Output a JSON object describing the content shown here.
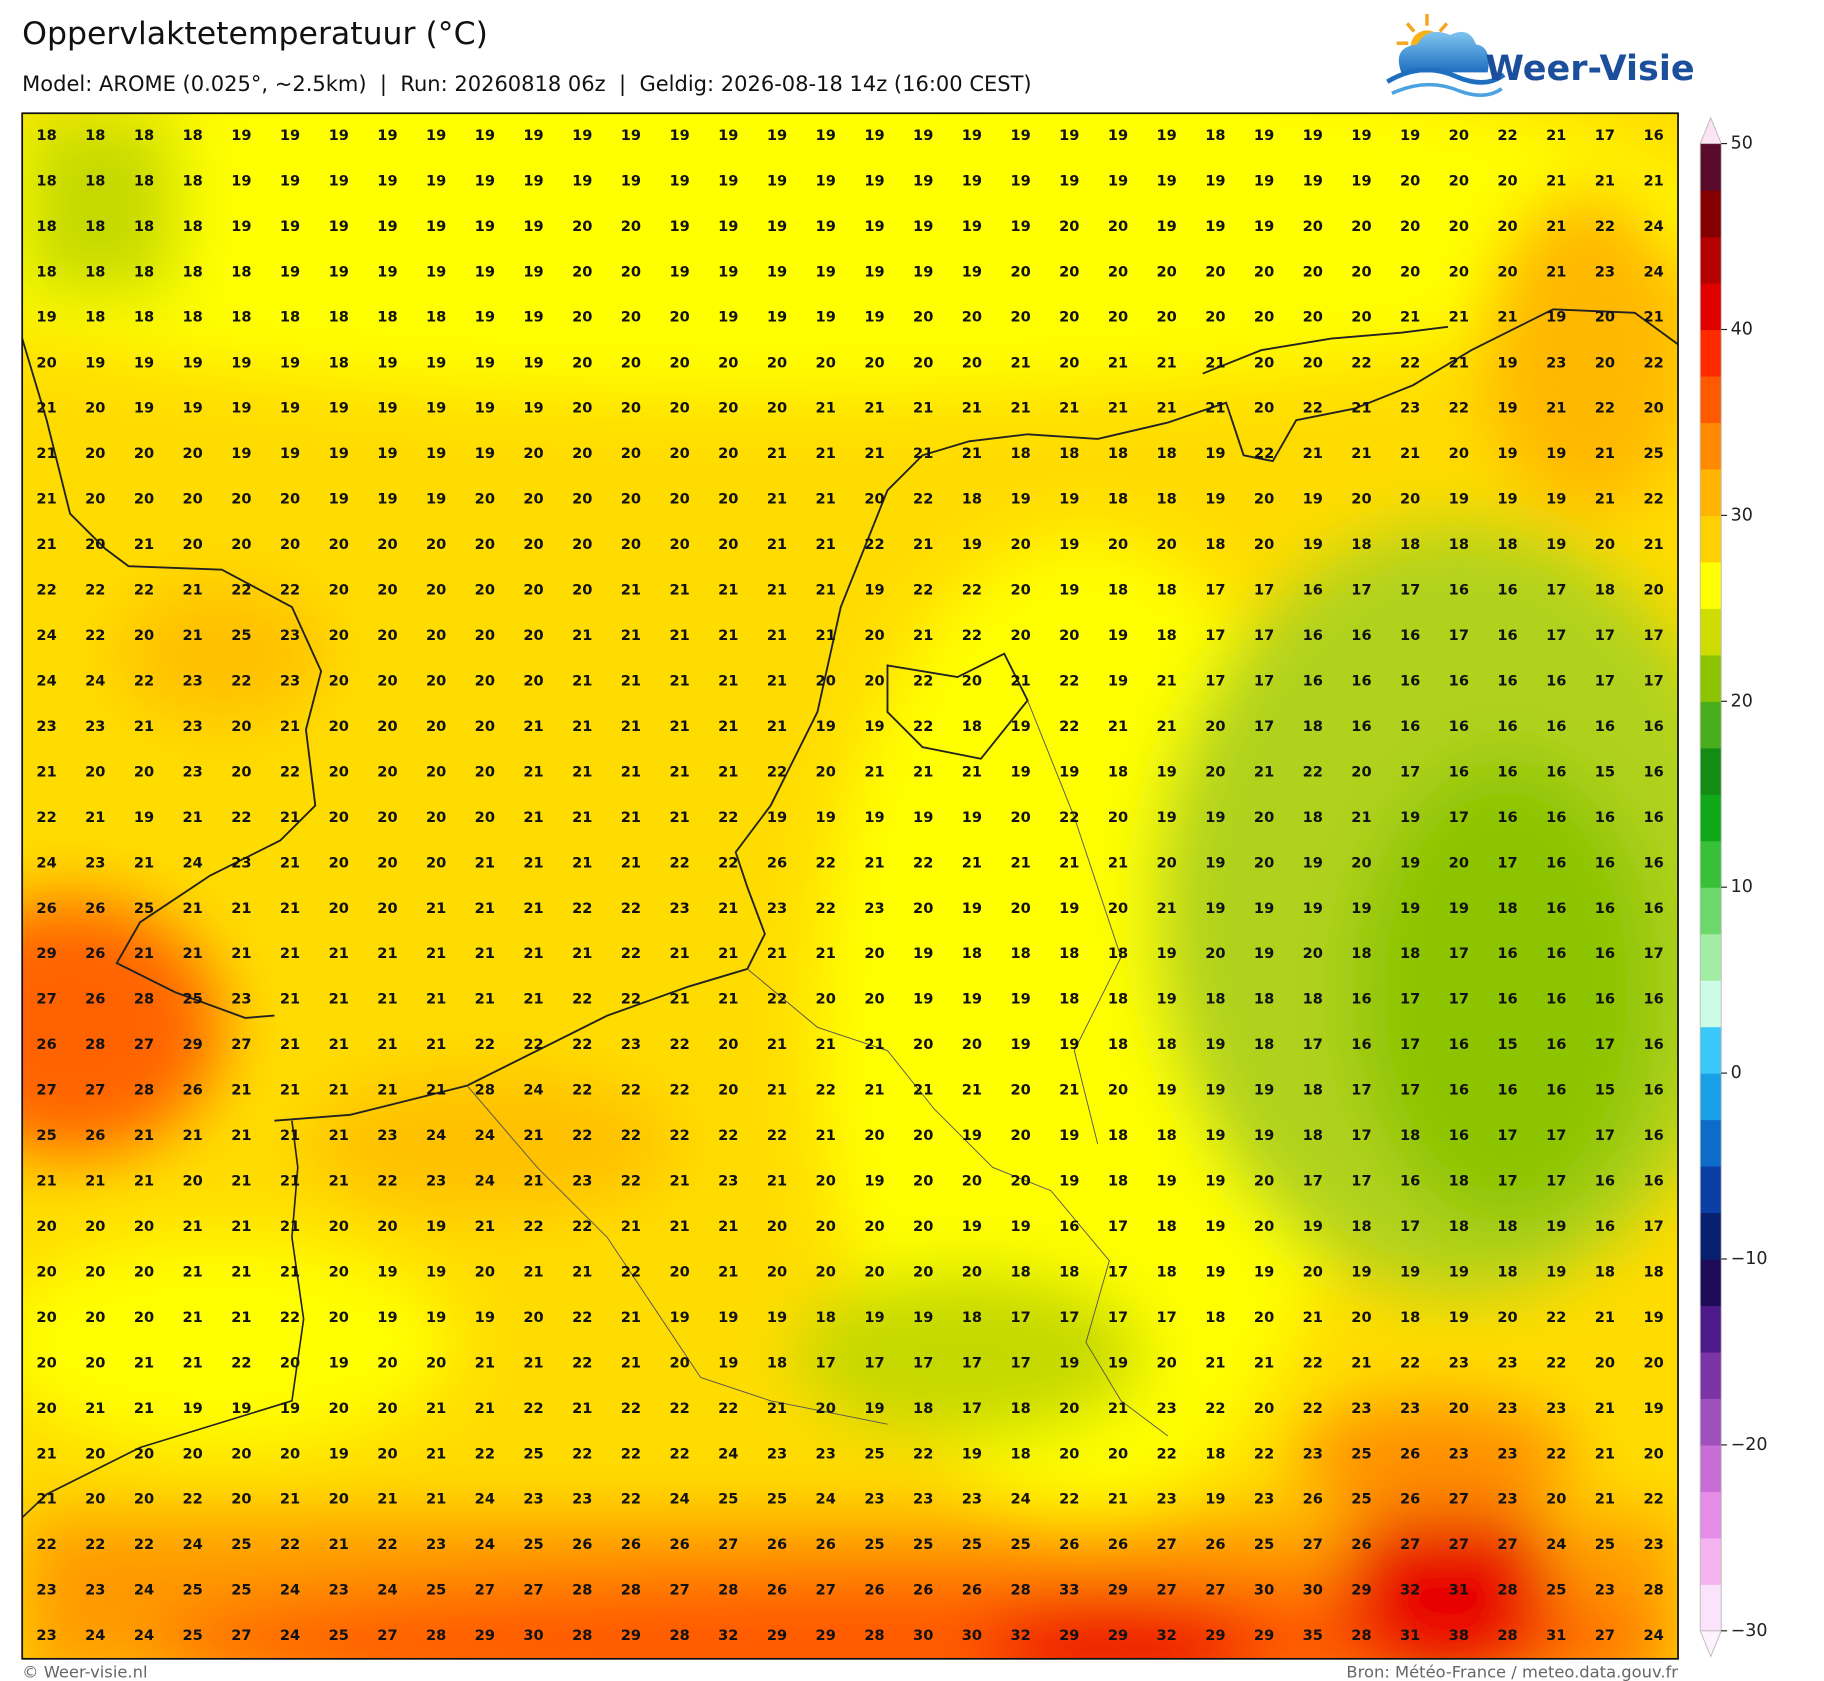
{
  "header": {
    "title": "Oppervlaktetemperatuur (°C)",
    "subtitle": "Model: AROME (0.025°, ~2.5km)  |  Run: 20260818 06z  |  Geldig: 2026-08-18 14z (16:00 CEST)"
  },
  "logo": {
    "text": "Weer-Visie"
  },
  "map": {
    "rows": [
      [
        18,
        18,
        18,
        18,
        19,
        19,
        19,
        19,
        19,
        19,
        19,
        19,
        19,
        19,
        19,
        19,
        19,
        19,
        19,
        19,
        19,
        19,
        19,
        19,
        18,
        19,
        19,
        19,
        19,
        20,
        22,
        21,
        17,
        16
      ],
      [
        18,
        18,
        18,
        18,
        19,
        19,
        19,
        19,
        19,
        19,
        19,
        19,
        19,
        19,
        19,
        19,
        19,
        19,
        19,
        19,
        19,
        19,
        19,
        19,
        19,
        19,
        19,
        19,
        20,
        20,
        20,
        21,
        21,
        21
      ],
      [
        18,
        18,
        18,
        18,
        19,
        19,
        19,
        19,
        19,
        19,
        19,
        20,
        20,
        19,
        19,
        19,
        19,
        19,
        19,
        19,
        19,
        20,
        20,
        19,
        19,
        19,
        20,
        20,
        20,
        20,
        20,
        21,
        22,
        24
      ],
      [
        18,
        18,
        18,
        18,
        18,
        19,
        19,
        19,
        19,
        19,
        19,
        20,
        20,
        19,
        19,
        19,
        19,
        19,
        19,
        19,
        20,
        20,
        20,
        20,
        20,
        20,
        20,
        20,
        20,
        20,
        20,
        21,
        23,
        24
      ],
      [
        19,
        18,
        18,
        18,
        18,
        18,
        18,
        18,
        18,
        19,
        19,
        20,
        20,
        20,
        19,
        19,
        19,
        19,
        20,
        20,
        20,
        20,
        20,
        20,
        20,
        20,
        20,
        20,
        21,
        21,
        21,
        19,
        20,
        21
      ],
      [
        20,
        19,
        19,
        19,
        19,
        19,
        18,
        19,
        19,
        19,
        19,
        20,
        20,
        20,
        20,
        20,
        20,
        20,
        20,
        20,
        21,
        20,
        21,
        21,
        21,
        20,
        20,
        22,
        22,
        21,
        19,
        23,
        20,
        22
      ],
      [
        21,
        20,
        19,
        19,
        19,
        19,
        19,
        19,
        19,
        19,
        19,
        20,
        20,
        20,
        20,
        20,
        21,
        21,
        21,
        21,
        21,
        21,
        21,
        21,
        21,
        20,
        22,
        21,
        23,
        22,
        19,
        21,
        22,
        20
      ],
      [
        21,
        20,
        20,
        20,
        19,
        19,
        19,
        19,
        19,
        19,
        20,
        20,
        20,
        20,
        20,
        21,
        21,
        21,
        21,
        21,
        18,
        18,
        18,
        18,
        19,
        22,
        21,
        21,
        21,
        20,
        19,
        19,
        21,
        25
      ],
      [
        21,
        20,
        20,
        20,
        20,
        20,
        19,
        19,
        19,
        20,
        20,
        20,
        20,
        20,
        20,
        21,
        21,
        20,
        22,
        18,
        19,
        19,
        18,
        18,
        19,
        20,
        19,
        20,
        20,
        19,
        19,
        19,
        21,
        22
      ],
      [
        21,
        20,
        21,
        20,
        20,
        20,
        20,
        20,
        20,
        20,
        20,
        20,
        20,
        20,
        20,
        21,
        21,
        22,
        21,
        19,
        20,
        19,
        20,
        20,
        18,
        20,
        19,
        18,
        18,
        18,
        18,
        19,
        20,
        21
      ],
      [
        22,
        22,
        22,
        21,
        22,
        22,
        20,
        20,
        20,
        20,
        20,
        20,
        21,
        21,
        21,
        21,
        21,
        19,
        22,
        22,
        20,
        19,
        18,
        18,
        17,
        17,
        16,
        17,
        17,
        16,
        16,
        17,
        18,
        20
      ],
      [
        24,
        22,
        20,
        21,
        25,
        23,
        20,
        20,
        20,
        20,
        20,
        21,
        21,
        21,
        21,
        21,
        21,
        20,
        21,
        22,
        20,
        20,
        19,
        18,
        17,
        17,
        16,
        16,
        16,
        17,
        16,
        17,
        17,
        17
      ],
      [
        24,
        24,
        22,
        23,
        22,
        23,
        20,
        20,
        20,
        20,
        20,
        21,
        21,
        21,
        21,
        21,
        20,
        20,
        22,
        20,
        21,
        22,
        19,
        21,
        17,
        17,
        16,
        16,
        16,
        16,
        16,
        16,
        17,
        17
      ],
      [
        23,
        23,
        21,
        23,
        20,
        21,
        20,
        20,
        20,
        20,
        21,
        21,
        21,
        21,
        21,
        21,
        19,
        19,
        22,
        18,
        19,
        22,
        21,
        21,
        20,
        17,
        18,
        16,
        16,
        16,
        16,
        16,
        16,
        16
      ],
      [
        21,
        20,
        20,
        23,
        20,
        22,
        20,
        20,
        20,
        20,
        21,
        21,
        21,
        21,
        21,
        22,
        20,
        21,
        21,
        21,
        19,
        19,
        18,
        19,
        20,
        21,
        22,
        20,
        17,
        16,
        16,
        16,
        15,
        16
      ],
      [
        22,
        21,
        19,
        21,
        22,
        21,
        20,
        20,
        20,
        20,
        21,
        21,
        21,
        21,
        22,
        19,
        19,
        19,
        19,
        19,
        20,
        22,
        20,
        19,
        19,
        20,
        18,
        21,
        19,
        17,
        16,
        16,
        16,
        16
      ],
      [
        24,
        23,
        21,
        24,
        23,
        21,
        20,
        20,
        20,
        21,
        21,
        21,
        21,
        22,
        22,
        26,
        22,
        21,
        22,
        21,
        21,
        21,
        21,
        20,
        19,
        20,
        19,
        20,
        19,
        20,
        17,
        16,
        16,
        16
      ],
      [
        26,
        26,
        25,
        21,
        21,
        21,
        20,
        20,
        21,
        21,
        21,
        22,
        22,
        23,
        21,
        23,
        22,
        23,
        20,
        19,
        20,
        19,
        20,
        21,
        19,
        19,
        19,
        19,
        19,
        19,
        18,
        16,
        16,
        16
      ],
      [
        29,
        26,
        21,
        21,
        21,
        21,
        21,
        21,
        21,
        21,
        21,
        21,
        22,
        21,
        21,
        21,
        21,
        20,
        19,
        18,
        18,
        18,
        18,
        19,
        20,
        19,
        20,
        18,
        18,
        17,
        16,
        16,
        16,
        17
      ],
      [
        27,
        26,
        28,
        25,
        23,
        21,
        21,
        21,
        21,
        21,
        21,
        22,
        22,
        21,
        21,
        22,
        20,
        20,
        19,
        19,
        19,
        18,
        18,
        19,
        18,
        18,
        18,
        16,
        17,
        17,
        16,
        16,
        16,
        16
      ],
      [
        26,
        28,
        27,
        29,
        27,
        21,
        21,
        21,
        21,
        22,
        22,
        22,
        23,
        22,
        20,
        21,
        21,
        21,
        20,
        20,
        19,
        19,
        18,
        18,
        19,
        18,
        17,
        16,
        17,
        16,
        15,
        16,
        17,
        16
      ],
      [
        27,
        27,
        28,
        26,
        21,
        21,
        21,
        21,
        21,
        28,
        24,
        22,
        22,
        22,
        20,
        21,
        22,
        21,
        21,
        21,
        20,
        21,
        20,
        19,
        19,
        19,
        18,
        17,
        17,
        16,
        16,
        16,
        15,
        16
      ],
      [
        25,
        26,
        21,
        21,
        21,
        21,
        21,
        23,
        24,
        24,
        21,
        22,
        22,
        22,
        22,
        22,
        21,
        20,
        20,
        19,
        20,
        19,
        18,
        18,
        19,
        19,
        18,
        17,
        18,
        16,
        17,
        17,
        17,
        16
      ],
      [
        21,
        21,
        21,
        20,
        21,
        21,
        21,
        22,
        23,
        24,
        21,
        23,
        22,
        21,
        23,
        21,
        20,
        19,
        20,
        20,
        20,
        19,
        18,
        19,
        19,
        20,
        17,
        17,
        16,
        18,
        17,
        17,
        16,
        16
      ],
      [
        20,
        20,
        20,
        21,
        21,
        21,
        20,
        20,
        19,
        21,
        22,
        22,
        21,
        21,
        21,
        20,
        20,
        20,
        20,
        19,
        19,
        16,
        17,
        18,
        19,
        20,
        19,
        18,
        17,
        18,
        18,
        19,
        16,
        17
      ],
      [
        20,
        20,
        20,
        21,
        21,
        21,
        20,
        19,
        19,
        20,
        21,
        21,
        22,
        20,
        21,
        20,
        20,
        20,
        20,
        20,
        18,
        18,
        17,
        18,
        19,
        19,
        20,
        19,
        19,
        19,
        18,
        19,
        18,
        18
      ],
      [
        20,
        20,
        20,
        21,
        21,
        22,
        20,
        19,
        19,
        19,
        20,
        22,
        21,
        19,
        19,
        19,
        18,
        19,
        19,
        18,
        17,
        17,
        17,
        17,
        18,
        20,
        21,
        20,
        18,
        19,
        20,
        22,
        21,
        19
      ],
      [
        20,
        20,
        21,
        21,
        22,
        20,
        19,
        20,
        20,
        21,
        21,
        22,
        21,
        20,
        19,
        18,
        17,
        17,
        17,
        17,
        17,
        19,
        19,
        20,
        21,
        21,
        22,
        21,
        22,
        23,
        23,
        22,
        20,
        20
      ],
      [
        20,
        21,
        21,
        19,
        19,
        19,
        20,
        20,
        21,
        21,
        22,
        21,
        22,
        22,
        22,
        21,
        20,
        19,
        18,
        17,
        18,
        20,
        21,
        23,
        22,
        20,
        22,
        23,
        23,
        20,
        23,
        23,
        21,
        19
      ],
      [
        21,
        20,
        20,
        20,
        20,
        20,
        19,
        20,
        21,
        22,
        25,
        22,
        22,
        22,
        24,
        23,
        23,
        25,
        22,
        19,
        18,
        20,
        20,
        22,
        18,
        22,
        23,
        25,
        26,
        23,
        23,
        22,
        21,
        20
      ],
      [
        21,
        20,
        20,
        22,
        20,
        21,
        20,
        21,
        21,
        24,
        23,
        23,
        22,
        24,
        25,
        25,
        24,
        23,
        23,
        23,
        24,
        22,
        21,
        23,
        19,
        23,
        26,
        25,
        26,
        27,
        23,
        20,
        21,
        22
      ],
      [
        22,
        22,
        22,
        24,
        25,
        22,
        21,
        22,
        23,
        24,
        25,
        26,
        26,
        26,
        27,
        26,
        26,
        25,
        25,
        25,
        25,
        26,
        26,
        27,
        26,
        25,
        27,
        26,
        27,
        27,
        27,
        24,
        25,
        23
      ],
      [
        23,
        23,
        24,
        25,
        25,
        24,
        23,
        24,
        25,
        27,
        27,
        28,
        28,
        27,
        28,
        26,
        27,
        26,
        26,
        26,
        28,
        33,
        29,
        27,
        27,
        30,
        30,
        29,
        32,
        31,
        28,
        25,
        23,
        28
      ],
      [
        23,
        24,
        24,
        25,
        27,
        24,
        25,
        27,
        28,
        29,
        30,
        28,
        29,
        28,
        32,
        29,
        29,
        28,
        30,
        30,
        32,
        29,
        29,
        32,
        29,
        29,
        35,
        28,
        31,
        38,
        28,
        31,
        27,
        24
      ]
    ]
  },
  "colorbar": {
    "lim": [
      -30,
      50
    ],
    "ticks": [
      50,
      40,
      30,
      20,
      10,
      0,
      {
        "value": -10,
        "label": "−10"
      },
      {
        "value": -20,
        "label": "−20"
      },
      {
        "value": -30,
        "label": "−30"
      }
    ],
    "colors": [
      "#fbe4fb",
      "#f4b4f0",
      "#e48ce6",
      "#c86cd6",
      "#a050bc",
      "#7a34a6",
      "#4e1a8a",
      "#1e0c58",
      "#08206e",
      "#0a3ea4",
      "#0c6cc8",
      "#1aa0e6",
      "#3ac8fa",
      "#ccfce8",
      "#a2eca4",
      "#6cd86c",
      "#38c038",
      "#10a818",
      "#128c12",
      "#4aae1c",
      "#8cc400",
      "#cedc00",
      "#ffff00",
      "#ffd000",
      "#ffb400",
      "#ff8a00",
      "#ff5a00",
      "#ff2a00",
      "#e00000",
      "#b40000",
      "#840000",
      "#5a0a2a"
    ]
  },
  "footer": {
    "left": "© Weer-visie.nl",
    "right": "Bron: Météo-France / meteo.data.gouv.fr"
  }
}
